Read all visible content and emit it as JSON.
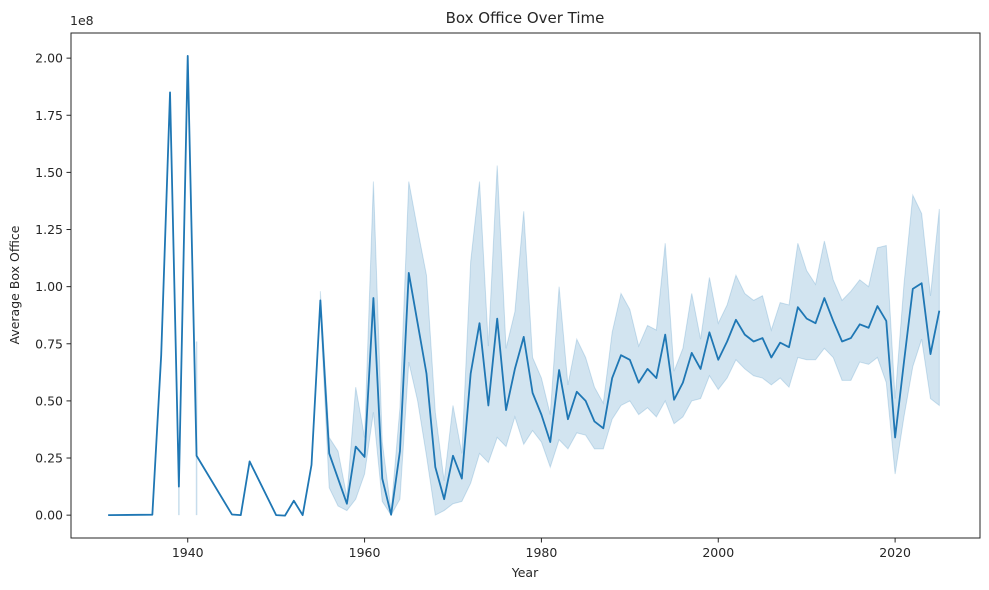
{
  "chart_data": {
    "type": "line",
    "title": "Box Office Over Time",
    "xlabel": "Year",
    "ylabel": "Average Box Office",
    "y_offset_label": "1e8",
    "xlim": [
      1926.8,
      2029.6
    ],
    "ylim": [
      -0.1,
      2.11
    ],
    "xticks": [
      1940,
      1960,
      1980,
      2000,
      2020
    ],
    "yticks": [
      0.0,
      0.25,
      0.5,
      0.75,
      1.0,
      1.25,
      1.5,
      1.75,
      2.0
    ],
    "ytick_labels": [
      "0.00",
      "0.25",
      "0.50",
      "0.75",
      "1.00",
      "1.25",
      "1.50",
      "1.75",
      "2.00"
    ],
    "grid": false,
    "line_color": "#1f77b4",
    "band_color": "#1f77b4",
    "band_opacity": 0.2,
    "series": [
      {
        "points": [
          [
            1931,
            0.0
          ],
          [
            1936,
            0.002
          ],
          [
            1937,
            0.7
          ],
          [
            1938,
            1.85
          ],
          [
            1939,
            0.125
          ],
          [
            1940,
            2.01
          ],
          [
            1941,
            0.26
          ],
          [
            1945,
            0.003
          ],
          [
            1946,
            0.0
          ],
          [
            1947,
            0.235
          ],
          [
            1950,
            0.0
          ],
          [
            1951,
            -0.002
          ],
          [
            1952,
            0.063
          ],
          [
            1953,
            0.0
          ],
          [
            1954,
            0.22
          ],
          [
            1955,
            0.94
          ],
          [
            1956,
            0.27
          ],
          [
            1958,
            0.05
          ],
          [
            1959,
            0.3
          ],
          [
            1960,
            0.255
          ],
          [
            1961,
            0.95
          ],
          [
            1962,
            0.16
          ],
          [
            1963,
            0.002
          ],
          [
            1964,
            0.28
          ],
          [
            1965,
            1.06
          ],
          [
            1966,
            0.84
          ],
          [
            1967,
            0.62
          ],
          [
            1968,
            0.21
          ],
          [
            1969,
            0.07
          ],
          [
            1970,
            0.26
          ],
          [
            1971,
            0.16
          ],
          [
            1972,
            0.62
          ],
          [
            1973,
            0.84
          ],
          [
            1974,
            0.48
          ],
          [
            1975,
            0.86
          ],
          [
            1976,
            0.46
          ],
          [
            1977,
            0.64
          ],
          [
            1978,
            0.78
          ],
          [
            1979,
            0.535
          ],
          [
            1980,
            0.44
          ],
          [
            1981,
            0.32
          ],
          [
            1982,
            0.635
          ],
          [
            1983,
            0.42
          ],
          [
            1984,
            0.54
          ],
          [
            1985,
            0.5
          ],
          [
            1986,
            0.41
          ],
          [
            1987,
            0.38
          ],
          [
            1988,
            0.6
          ],
          [
            1989,
            0.7
          ],
          [
            1990,
            0.68
          ],
          [
            1991,
            0.58
          ],
          [
            1992,
            0.64
          ],
          [
            1993,
            0.6
          ],
          [
            1994,
            0.79
          ],
          [
            1995,
            0.505
          ],
          [
            1996,
            0.58
          ],
          [
            1997,
            0.71
          ],
          [
            1998,
            0.64
          ],
          [
            1999,
            0.8
          ],
          [
            2000,
            0.68
          ],
          [
            2001,
            0.76
          ],
          [
            2002,
            0.855
          ],
          [
            2003,
            0.79
          ],
          [
            2004,
            0.76
          ],
          [
            2005,
            0.775
          ],
          [
            2006,
            0.69
          ],
          [
            2007,
            0.755
          ],
          [
            2008,
            0.735
          ],
          [
            2009,
            0.91
          ],
          [
            2010,
            0.86
          ],
          [
            2011,
            0.84
          ],
          [
            2012,
            0.95
          ],
          [
            2013,
            0.85
          ],
          [
            2014,
            0.76
          ],
          [
            2015,
            0.775
          ],
          [
            2016,
            0.835
          ],
          [
            2017,
            0.82
          ],
          [
            2018,
            0.915
          ],
          [
            2019,
            0.85
          ],
          [
            2020,
            0.34
          ],
          [
            2021,
            0.67
          ],
          [
            2022,
            0.99
          ],
          [
            2023,
            1.015
          ],
          [
            2024,
            0.705
          ],
          [
            2025,
            0.895
          ]
        ],
        "ci_band": [
          [
            1939,
            0.0,
            0.28
          ],
          [
            1941,
            0.0,
            0.76
          ],
          [
            1955,
            0.9,
            0.98
          ],
          [
            1956,
            0.12,
            0.34
          ],
          [
            1957,
            0.04,
            0.28
          ],
          [
            1958,
            0.02,
            0.08
          ],
          [
            1959,
            0.07,
            0.56
          ],
          [
            1960,
            0.18,
            0.34
          ],
          [
            1961,
            0.45,
            1.46
          ],
          [
            1962,
            0.06,
            0.32
          ],
          [
            1963,
            0.0,
            0.02
          ],
          [
            1964,
            0.07,
            0.47
          ],
          [
            1965,
            0.67,
            1.46
          ],
          [
            1966,
            0.5,
            1.25
          ],
          [
            1967,
            0.26,
            1.05
          ],
          [
            1968,
            0.0,
            0.45
          ],
          [
            1969,
            0.02,
            0.15
          ],
          [
            1970,
            0.05,
            0.48
          ],
          [
            1971,
            0.06,
            0.27
          ],
          [
            1972,
            0.14,
            1.11
          ],
          [
            1973,
            0.27,
            1.46
          ],
          [
            1974,
            0.23,
            0.74
          ],
          [
            1975,
            0.34,
            1.53
          ],
          [
            1976,
            0.3,
            0.73
          ],
          [
            1977,
            0.43,
            0.89
          ],
          [
            1978,
            0.31,
            1.33
          ],
          [
            1979,
            0.37,
            0.69
          ],
          [
            1980,
            0.32,
            0.6
          ],
          [
            1981,
            0.21,
            0.44
          ],
          [
            1982,
            0.33,
            1.0
          ],
          [
            1983,
            0.29,
            0.57
          ],
          [
            1984,
            0.36,
            0.77
          ],
          [
            1985,
            0.35,
            0.69
          ],
          [
            1986,
            0.29,
            0.56
          ],
          [
            1987,
            0.29,
            0.49
          ],
          [
            1988,
            0.42,
            0.8
          ],
          [
            1989,
            0.48,
            0.97
          ],
          [
            1990,
            0.5,
            0.9
          ],
          [
            1991,
            0.44,
            0.74
          ],
          [
            1992,
            0.47,
            0.83
          ],
          [
            1993,
            0.43,
            0.81
          ],
          [
            1994,
            0.5,
            1.19
          ],
          [
            1995,
            0.4,
            0.63
          ],
          [
            1996,
            0.43,
            0.73
          ],
          [
            1997,
            0.5,
            0.97
          ],
          [
            1998,
            0.51,
            0.77
          ],
          [
            1999,
            0.61,
            1.04
          ],
          [
            2000,
            0.55,
            0.84
          ],
          [
            2001,
            0.6,
            0.92
          ],
          [
            2002,
            0.68,
            1.05
          ],
          [
            2003,
            0.64,
            0.97
          ],
          [
            2004,
            0.61,
            0.94
          ],
          [
            2005,
            0.6,
            0.96
          ],
          [
            2006,
            0.57,
            0.81
          ],
          [
            2007,
            0.6,
            0.93
          ],
          [
            2008,
            0.56,
            0.92
          ],
          [
            2009,
            0.69,
            1.19
          ],
          [
            2010,
            0.68,
            1.07
          ],
          [
            2011,
            0.68,
            1.01
          ],
          [
            2012,
            0.73,
            1.2
          ],
          [
            2013,
            0.69,
            1.03
          ],
          [
            2014,
            0.59,
            0.94
          ],
          [
            2015,
            0.59,
            0.98
          ],
          [
            2016,
            0.67,
            1.03
          ],
          [
            2017,
            0.66,
            1.0
          ],
          [
            2018,
            0.69,
            1.17
          ],
          [
            2019,
            0.58,
            1.18
          ],
          [
            2020,
            0.18,
            0.51
          ],
          [
            2021,
            0.43,
            1.01
          ],
          [
            2022,
            0.65,
            1.4
          ],
          [
            2023,
            0.77,
            1.32
          ],
          [
            2024,
            0.51,
            0.96
          ],
          [
            2025,
            0.48,
            1.34
          ]
        ]
      }
    ]
  }
}
